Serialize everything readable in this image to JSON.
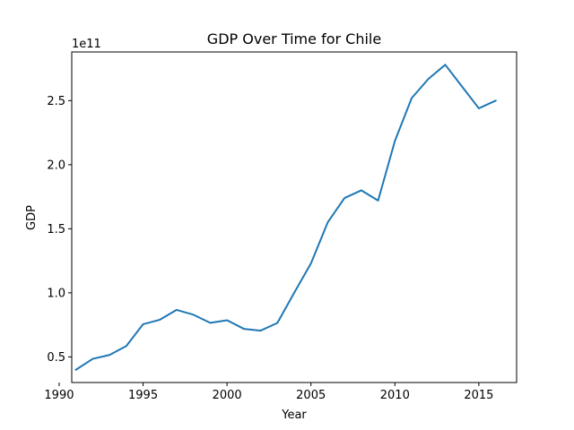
{
  "chart_data": {
    "type": "line",
    "title": "GDP Over Time for Chile",
    "xlabel": "Year",
    "ylabel": "GDP",
    "y_offset_label": "1e11",
    "y_scale_factor": 100000000000,
    "xlim": [
      1990.75,
      2017.25
    ],
    "ylim": [
      30000000000,
      288000000000
    ],
    "x_ticks": [
      1990,
      1995,
      2000,
      2005,
      2010,
      2015
    ],
    "y_ticks": [
      0.5,
      1.0,
      1.5,
      2.0,
      2.5
    ],
    "y_tick_labels": [
      "0.5",
      "1.0",
      "1.5",
      "2.0",
      "2.5"
    ],
    "grid": false,
    "line_color": "#1f77b4",
    "series": [
      {
        "x": [
          1991,
          1992,
          1993,
          1994,
          1995,
          1996,
          1997,
          1998,
          1999,
          2000,
          2001,
          2002,
          2003,
          2004,
          2005,
          2006,
          2007,
          2008,
          2009,
          2010,
          2011,
          2012,
          2013,
          2014,
          2015,
          2016
        ],
        "values": [
          40000000000,
          48500000000,
          51500000000,
          58500000000,
          75500000000,
          79000000000,
          86700000000,
          82900000000,
          76600000000,
          78600000000,
          71900000000,
          70500000000,
          76500000000,
          100000000000,
          123000000000,
          155000000000,
          174000000000,
          180000000000,
          172000000000,
          218500000000,
          252000000000,
          267000000000,
          278000000000,
          261000000000,
          244000000000,
          250000000000
        ]
      }
    ]
  }
}
